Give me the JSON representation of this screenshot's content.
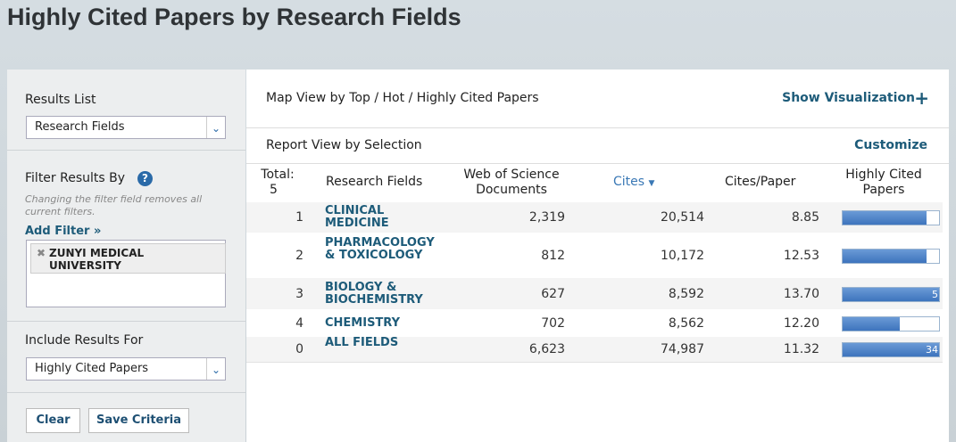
{
  "title": "Highly Cited Papers by Research Fields",
  "sidebar": {
    "results_list": {
      "label": "Results List",
      "selected": "Research Fields"
    },
    "filter": {
      "label": "Filter Results By",
      "help": "?",
      "note": "Changing the filter field removes all current filters.",
      "add_filter": "Add Filter »",
      "filters": [
        "ZUNYI MEDICAL UNIVERSITY"
      ]
    },
    "include": {
      "label": "Include Results For",
      "selected": "Highly Cited Papers"
    },
    "buttons": [
      "Clear",
      "Save Criteria"
    ]
  },
  "main": {
    "map_view": "Map View by Top / Hot / Highly Cited Papers",
    "show_visualization": "Show Visualization",
    "report_view": "Report View by Selection",
    "customize": "Customize",
    "table": {
      "total_label": "Total:",
      "total": "5",
      "columns": [
        "Research Fields",
        "Web of Science Documents",
        "Cites",
        "Cites/Paper",
        "Highly Cited Papers"
      ],
      "rows": [
        [
          "1",
          "CLINICAL MEDICINE",
          "2,319",
          "20,514",
          "8.85",
          "4"
        ],
        [
          "2",
          "PHARMACOLOGY & TOXICOLOGY",
          "812",
          "10,172",
          "12.53",
          "4"
        ],
        [
          "3",
          "BIOLOGY & BIOCHEMISTRY",
          "627",
          "8,592",
          "13.70",
          "5"
        ],
        [
          "4",
          "CHEMISTRY",
          "702",
          "8,562",
          "12.20",
          "3"
        ],
        [
          "0",
          "ALL FIELDS",
          "6,623",
          "74,987",
          "11.32",
          "34"
        ]
      ]
    }
  }
}
